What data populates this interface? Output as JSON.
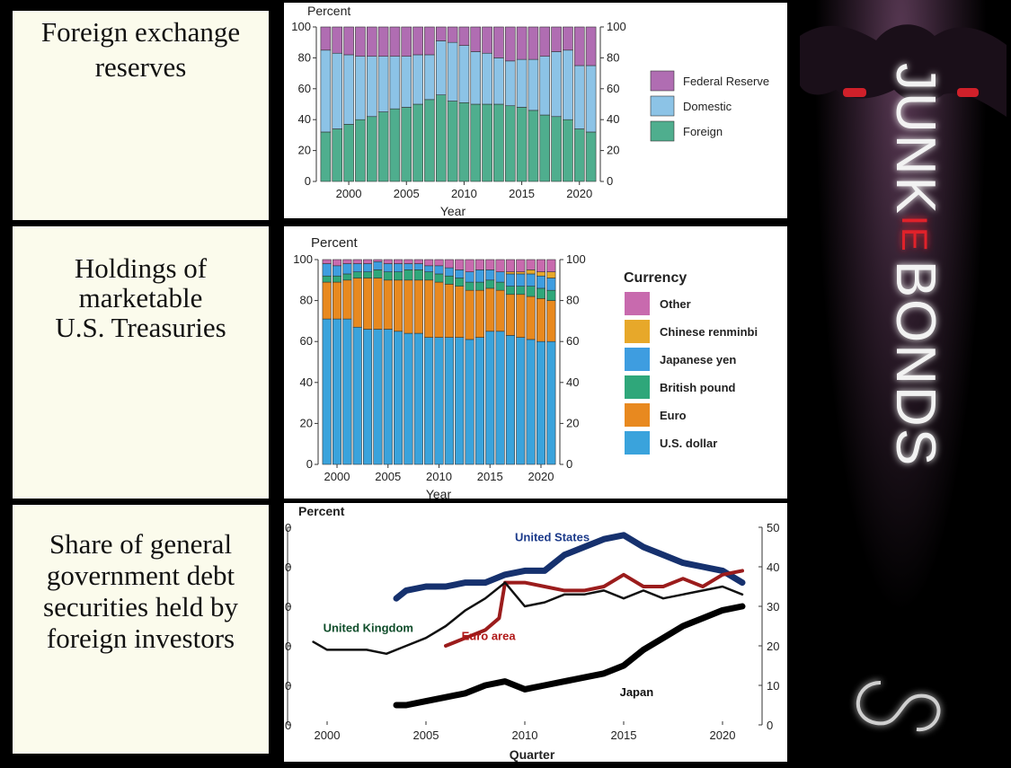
{
  "labels": {
    "reserves": [
      "Foreign exchange",
      "reserves"
    ],
    "treasuries": [
      "Holdings of",
      "marketable",
      "U.S. Treasuries"
    ],
    "debt": [
      "Share of general",
      "government debt",
      "securities held by",
      "foreign investors"
    ]
  },
  "brand": {
    "pre": "JUNK",
    "mid": "IE",
    "post": "BONDS"
  },
  "chart_data": [
    {
      "type": "bar",
      "stacked": true,
      "ylabel": "Percent",
      "xlabel": "Year",
      "ylim": [
        0,
        100
      ],
      "yticks": [
        "0",
        "20",
        "40",
        "60",
        "80",
        "100"
      ],
      "xticks": [
        "2000",
        "2005",
        "2010",
        "2015",
        "2020"
      ],
      "categories": [
        1998,
        1999,
        2000,
        2001,
        2002,
        2003,
        2004,
        2005,
        2006,
        2007,
        2008,
        2009,
        2010,
        2011,
        2012,
        2013,
        2014,
        2015,
        2016,
        2017,
        2018,
        2019,
        2020,
        2021
      ],
      "legend_position": "right",
      "series": [
        {
          "name": "Foreign",
          "color": "#4fae8e",
          "values": [
            32,
            34,
            37,
            40,
            42,
            45,
            47,
            48,
            50,
            53,
            56,
            52,
            51,
            50,
            50,
            50,
            49,
            48,
            46,
            43,
            42,
            40,
            34,
            32
          ]
        },
        {
          "name": "Domestic",
          "color": "#8cc3e6",
          "values": [
            53,
            49,
            45,
            41,
            39,
            36,
            34,
            33,
            32,
            29,
            35,
            38,
            37,
            34,
            33,
            30,
            29,
            31,
            33,
            38,
            42,
            45,
            41,
            43
          ]
        },
        {
          "name": "Federal Reserve",
          "color": "#b06db2",
          "values": [
            15,
            17,
            18,
            19,
            19,
            19,
            19,
            19,
            18,
            18,
            9,
            10,
            12,
            16,
            17,
            20,
            22,
            21,
            21,
            19,
            16,
            15,
            25,
            25
          ]
        }
      ]
    },
    {
      "type": "bar",
      "stacked": true,
      "title": "Percent",
      "xlabel": "Year",
      "ylim": [
        0,
        100
      ],
      "yticks": [
        "0",
        "20",
        "40",
        "60",
        "80",
        "100"
      ],
      "xticks": [
        "2000",
        "2005",
        "2010",
        "2015",
        "2020"
      ],
      "categories": [
        1999,
        2000,
        2001,
        2002,
        2003,
        2004,
        2005,
        2006,
        2007,
        2008,
        2009,
        2010,
        2011,
        2012,
        2013,
        2014,
        2015,
        2016,
        2017,
        2018,
        2019,
        2020,
        2021
      ],
      "legend_title": "Currency",
      "legend_position": "right",
      "legend_order": [
        "Other",
        "Chinese renminbi",
        "Japanese yen",
        "British pound",
        "Euro",
        "U.S. dollar"
      ],
      "series": [
        {
          "name": "U.S. dollar",
          "color": "#3aa3dc",
          "values": [
            71,
            71,
            71,
            67,
            66,
            66,
            66,
            65,
            64,
            64,
            62,
            62,
            62,
            62,
            61,
            62,
            65,
            65,
            63,
            62,
            61,
            60,
            60
          ]
        },
        {
          "name": "Euro",
          "color": "#e8891f",
          "values": [
            18,
            18,
            19,
            24,
            25,
            25,
            24,
            25,
            26,
            26,
            28,
            27,
            26,
            25,
            24,
            23,
            21,
            20,
            20,
            21,
            21,
            21,
            20
          ]
        },
        {
          "name": "British pound",
          "color": "#2fa77a",
          "values": [
            3,
            3,
            3,
            3,
            3,
            4,
            4,
            4,
            5,
            5,
            4,
            4,
            4,
            4,
            4,
            4,
            4,
            4,
            4,
            4,
            5,
            5,
            5
          ]
        },
        {
          "name": "Japanese yen",
          "color": "#3e9de0",
          "values": [
            6,
            5,
            5,
            4,
            4,
            4,
            4,
            4,
            3,
            3,
            3,
            4,
            4,
            4,
            5,
            6,
            5,
            5,
            6,
            6,
            6,
            6,
            6
          ]
        },
        {
          "name": "Chinese renminbi",
          "color": "#e7a82a",
          "values": [
            0,
            0,
            0,
            0,
            0,
            0,
            0,
            0,
            0,
            0,
            0,
            0,
            0,
            0,
            0,
            0,
            0,
            0,
            1,
            1,
            2,
            2,
            3
          ]
        },
        {
          "name": "Other",
          "color": "#c86aae",
          "values": [
            2,
            3,
            2,
            2,
            2,
            1,
            2,
            2,
            2,
            2,
            3,
            3,
            4,
            5,
            6,
            5,
            5,
            6,
            6,
            6,
            5,
            6,
            6
          ]
        }
      ]
    },
    {
      "type": "line",
      "ylabel": "Percent",
      "xlabel": "Quarter",
      "xlim": [
        1998,
        2022
      ],
      "ylim": [
        0,
        50
      ],
      "xticks": [
        "2000",
        "2005",
        "2010",
        "2015",
        "2020"
      ],
      "yticks_left": [
        "0",
        "0",
        "0",
        "0",
        "0",
        "0"
      ],
      "yticks_right": [
        "0",
        "10",
        "20",
        "30",
        "40",
        "50"
      ],
      "series": [
        {
          "name": "United States",
          "color": "#16316e",
          "width": 7,
          "x": [
            2003.5,
            2004,
            2005,
            2006,
            2007,
            2008,
            2009,
            2010,
            2011,
            2012,
            2013,
            2014,
            2015,
            2016,
            2017,
            2018,
            2019,
            2020,
            2021
          ],
          "y": [
            32,
            34,
            35,
            35,
            36,
            36,
            38,
            39,
            39,
            43,
            45,
            47,
            48,
            45,
            43,
            41,
            40,
            39,
            36
          ]
        },
        {
          "name": "Euro area",
          "color": "#9b1c1c",
          "width": 4,
          "x": [
            2006,
            2007,
            2008,
            2008.7,
            2009,
            2010,
            2011,
            2012,
            2013,
            2014,
            2015,
            2016,
            2017,
            2018,
            2019,
            2020,
            2021
          ],
          "y": [
            20,
            22,
            24,
            27,
            36,
            36,
            35,
            34,
            34,
            35,
            38,
            35,
            35,
            37,
            35,
            38,
            39
          ]
        },
        {
          "name": "United Kingdom",
          "color": "#111111",
          "width": 2.5,
          "x": [
            1999.3,
            2000,
            2001,
            2002,
            2003,
            2004,
            2005,
            2006,
            2007,
            2008,
            2009,
            2010,
            2011,
            2012,
            2013,
            2014,
            2015,
            2016,
            2017,
            2018,
            2019,
            2020,
            2021
          ],
          "y": [
            21,
            19,
            19,
            19,
            18,
            20,
            22,
            25,
            29,
            32,
            36,
            30,
            31,
            33,
            33,
            34,
            32,
            34,
            32,
            33,
            34,
            35,
            33
          ]
        },
        {
          "name": "Japan",
          "color": "#000000",
          "width": 7,
          "x": [
            2003.5,
            2004,
            2005,
            2006,
            2007,
            2008,
            2009,
            2010,
            2011,
            2012,
            2013,
            2014,
            2015,
            2016,
            2017,
            2018,
            2019,
            2020,
            2021
          ],
          "y": [
            5,
            5,
            6,
            7,
            8,
            10,
            11,
            9,
            10,
            11,
            12,
            13,
            15,
            19,
            22,
            25,
            27,
            29,
            30
          ]
        }
      ]
    }
  ]
}
